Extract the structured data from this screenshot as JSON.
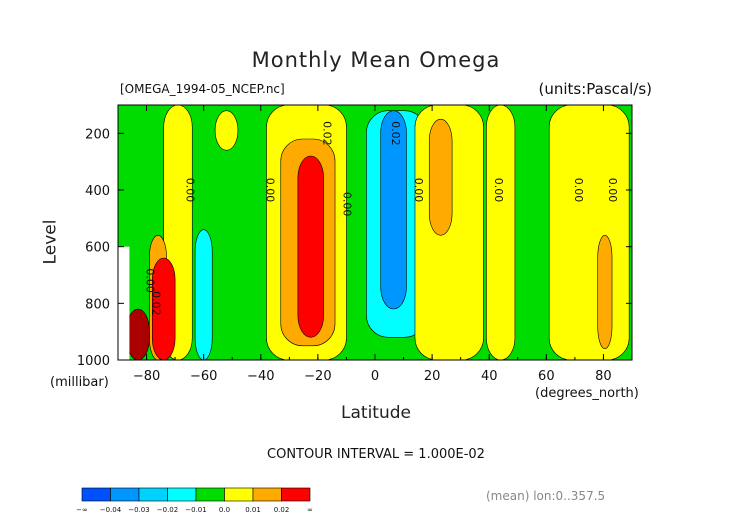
{
  "chart_data": {
    "type": "heatmap",
    "title": "Monthly Mean Omega",
    "file_label": "[OMEGA_1994-05_NCEP.nc]",
    "units_label": "(units:Pascal/s)",
    "xlabel": "Latitude",
    "x_unit": "(degrees_north)",
    "ylabel": "Level",
    "y_unit": "(millibar)",
    "xlim": [
      -90,
      90
    ],
    "ylim": [
      1000,
      100
    ],
    "x_ticks": [
      "-80",
      "-60",
      "-40",
      "-20",
      "0",
      "20",
      "40",
      "60",
      "80"
    ],
    "y_ticks": [
      "200",
      "400",
      "600",
      "800",
      "1000"
    ],
    "contour_interval": "CONTOUR INTERVAL = 1.000E-02",
    "footer": "(mean) lon:0..357.5",
    "colorbar": {
      "labels": [
        "-∞",
        "-0.04",
        "-0.03",
        "-0.02",
        "-0.01",
        "0.0",
        "0.01",
        "0.02",
        "∞"
      ],
      "colors": [
        "#0050ff",
        "#0096ff",
        "#00d2ff",
        "#00ffff",
        "#00dc00",
        "#ffff00",
        "#ffaa00",
        "#ff0000"
      ]
    },
    "contour_labels": [
      {
        "text": "0.00",
        "lat": -66,
        "level": 400
      },
      {
        "text": "0.00",
        "lat": -38,
        "level": 400
      },
      {
        "text": "0.02",
        "lat": -18,
        "level": 200
      },
      {
        "text": "0.00",
        "lat": -11,
        "level": 450
      },
      {
        "text": "0.02",
        "lat": 6,
        "level": 200
      },
      {
        "text": "0.00",
        "lat": 14,
        "level": 400
      },
      {
        "text": "0.00",
        "lat": 42,
        "level": 400
      },
      {
        "text": "0.00",
        "lat": 70,
        "level": 400
      },
      {
        "text": "0.00",
        "lat": 82,
        "level": 400
      },
      {
        "text": "0.02",
        "lat": -78,
        "level": 800
      },
      {
        "text": "0.00",
        "lat": -80,
        "level": 720
      }
    ],
    "regions": [
      {
        "value": 0.015,
        "color": "#ffff00",
        "lat": [
          -74,
          -64
        ],
        "level": [
          100,
          1000
        ]
      },
      {
        "value": 0.015,
        "color": "#ffff00",
        "lat": [
          -56,
          -48
        ],
        "level": [
          120,
          260
        ]
      },
      {
        "value": -0.015,
        "color": "#00ffff",
        "lat": [
          -63,
          -57
        ],
        "level": [
          540,
          1000
        ]
      },
      {
        "value": 0.015,
        "color": "#ffff00",
        "lat": [
          -38,
          -10
        ],
        "level": [
          100,
          1000
        ]
      },
      {
        "value": 0.025,
        "color": "#ffaa00",
        "lat": [
          -33,
          -14
        ],
        "level": [
          220,
          950
        ]
      },
      {
        "value": 0.035,
        "color": "#ff0000",
        "lat": [
          -27,
          -18
        ],
        "level": [
          280,
          920
        ]
      },
      {
        "value": -0.015,
        "color": "#00ffff",
        "lat": [
          -3,
          18
        ],
        "level": [
          120,
          920
        ]
      },
      {
        "value": -0.025,
        "color": "#0096ff",
        "lat": [
          2,
          11
        ],
        "level": [
          120,
          820
        ]
      },
      {
        "value": 0.015,
        "color": "#ffff00",
        "lat": [
          14,
          38
        ],
        "level": [
          100,
          1000
        ]
      },
      {
        "value": 0.025,
        "color": "#ffaa00",
        "lat": [
          19,
          27
        ],
        "level": [
          150,
          560
        ]
      },
      {
        "value": 0.015,
        "color": "#ffff00",
        "lat": [
          39,
          49
        ],
        "level": [
          100,
          1000
        ]
      },
      {
        "value": 0.015,
        "color": "#ffff00",
        "lat": [
          61,
          89
        ],
        "level": [
          100,
          1000
        ]
      },
      {
        "value": 0.025,
        "color": "#ffaa00",
        "lat": [
          78,
          83
        ],
        "level": [
          560,
          960
        ]
      },
      {
        "value": 0.025,
        "color": "#ffaa00",
        "lat": [
          -79,
          -73
        ],
        "level": [
          560,
          1000
        ]
      },
      {
        "value": 0.035,
        "color": "#ff0000",
        "lat": [
          -78,
          -70
        ],
        "level": [
          640,
          1000
        ]
      },
      {
        "value": 0.045,
        "color": "#aa0000",
        "lat": [
          -87,
          -79
        ],
        "level": [
          820,
          1000
        ]
      }
    ]
  }
}
